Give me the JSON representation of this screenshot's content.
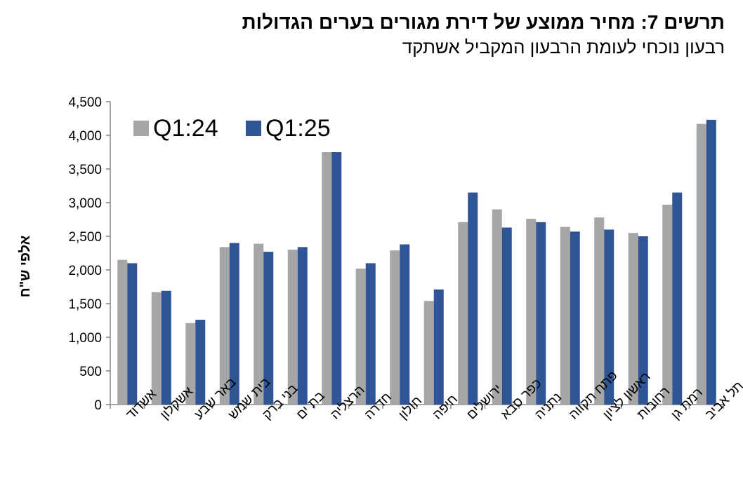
{
  "header": {
    "title": "תרשים 7: מחיר ממוצע של דירת מגורים בערים הגדולות",
    "subtitle": "רבעון נוכחי לעומת הרבעון המקביל אשתקד"
  },
  "chart_data": {
    "type": "bar",
    "ylabel": "אלפי ש\"ח",
    "ylim": [
      0,
      4500
    ],
    "yticks": [
      0,
      500,
      1000,
      1500,
      2000,
      2500,
      3000,
      3500,
      4000,
      4500
    ],
    "ytick_labels": [
      "0",
      "500",
      "1,000",
      "1,500",
      "2,000",
      "2,500",
      "3,000",
      "3,500",
      "4,000",
      "4,500"
    ],
    "grid": false,
    "legend_position": "top-left",
    "categories": [
      "אשדוד",
      "אשקלון",
      "באר שבע",
      "בית שמש",
      "בני ברק",
      "בת ים",
      "הרצליה",
      "חדרה",
      "חולון",
      "חיפה",
      "ירושלים",
      "כפר סבא",
      "נתניה",
      "פתח תקווה",
      "ראשון לציון",
      "רחובות",
      "רמת גן",
      "תל אביב"
    ],
    "series": [
      {
        "name": "Q1:24",
        "color": "#a6a6a6",
        "values": [
          2150,
          1670,
          1210,
          2340,
          2390,
          2300,
          3750,
          2020,
          2290,
          1540,
          2710,
          2900,
          2760,
          2640,
          2780,
          2550,
          2970,
          4170
        ]
      },
      {
        "name": "Q1:25",
        "color": "#2f5597",
        "values": [
          2100,
          1690,
          1260,
          2400,
          2270,
          2340,
          3750,
          2100,
          2380,
          1710,
          3150,
          2630,
          2710,
          2570,
          2600,
          2500,
          3150,
          4230
        ]
      }
    ]
  }
}
